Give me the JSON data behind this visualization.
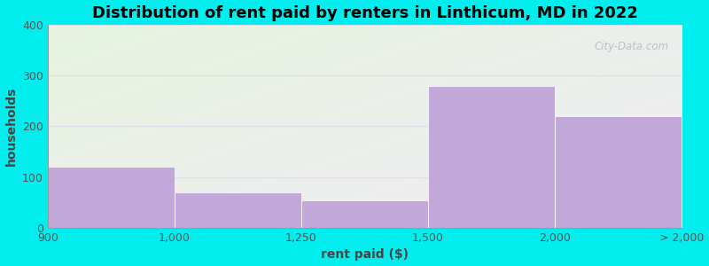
{
  "title": "Distribution of rent paid by renters in Linthicum, MD in 2022",
  "xlabel": "rent paid ($)",
  "ylabel": "households",
  "bar_color": "#c2a8d8",
  "background_color": "#00eeee",
  "gridline_color": "#e0dde8",
  "tick_positions": [
    0,
    1,
    2,
    3,
    4,
    5
  ],
  "tick_labels": [
    "900",
    "1,000",
    "1,250",
    "1,500",
    "2,000",
    "> 2,000"
  ],
  "bar_lefts": [
    0,
    1,
    2,
    3,
    4
  ],
  "bar_widths": [
    1,
    1,
    1,
    1,
    1
  ],
  "bar_heights": [
    120,
    70,
    55,
    280,
    220
  ],
  "ylim": [
    0,
    400
  ],
  "yticks": [
    0,
    100,
    200,
    300,
    400
  ],
  "title_fontsize": 13,
  "axis_label_fontsize": 10,
  "tick_fontsize": 9,
  "watermark_text": "City-Data.com",
  "grad_tl": [
    0.906,
    0.957,
    0.878
  ],
  "grad_br": [
    0.941,
    0.922,
    0.961
  ]
}
